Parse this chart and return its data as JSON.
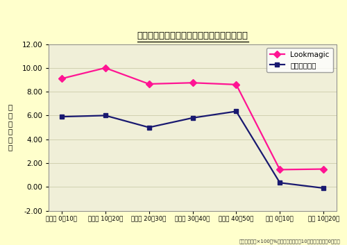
{
  "title": "着用前の血流をゼロとしたときの血流量変化",
  "ylabel": "血\n流\n量\n変\n化\n率",
  "categories": [
    "着用後 0〜10分",
    "着用後 10〜20分",
    "着用後 20〜30分",
    "着用後 30〜40分",
    "着用後 40〜50分",
    "脱後 0〜10分",
    "脱後 10〜20分"
  ],
  "lookmagic": [
    9.1,
    10.0,
    8.65,
    8.75,
    8.6,
    1.45,
    1.5
  ],
  "spats": [
    5.9,
    6.0,
    5.0,
    5.8,
    6.35,
    0.35,
    -0.1
  ],
  "lookmagic_color": "#FF1493",
  "spats_color": "#191970",
  "ylim": [
    -2.0,
    12.0
  ],
  "yticks": [
    -2.0,
    0.0,
    2.0,
    4.0,
    6.0,
    8.0,
    10.0,
    12.0
  ],
  "background_color": "#FFFFCC",
  "plot_bg_color": "#F0EFD8",
  "legend_lookmagic": "Lookmagic",
  "legend_spats": "市販スパッツ",
  "footnote": "註：変化率（×100で%の表示）履く前の10分間迫を基準値0とする"
}
